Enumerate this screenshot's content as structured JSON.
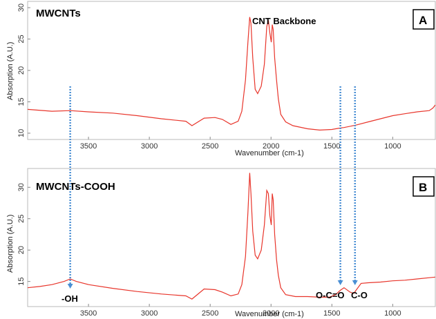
{
  "chart_data": [
    {
      "type": "line",
      "panel": "A",
      "title": "MWCNTs",
      "xlabel": "Wavenumber (cm-1)",
      "ylabel": "Absorption (A.U.)",
      "xlim": [
        4000,
        650
      ],
      "ylim": [
        9,
        31
      ],
      "x_reversed": true,
      "xticks": [
        3500,
        3000,
        2500,
        2000,
        1500,
        1000
      ],
      "yticks": [
        10,
        15,
        20,
        25,
        30
      ],
      "grid": false,
      "line_color": "#e8342a",
      "series": [
        {
          "x": [
            4000,
            3800,
            3650,
            3500,
            3300,
            3100,
            2900,
            2700,
            2650,
            2550,
            2460,
            2400,
            2330,
            2270,
            2240,
            2210,
            2190,
            2175,
            2165,
            2150,
            2130,
            2110,
            2080,
            2055,
            2035,
            2022,
            2010,
            1998,
            1990,
            1982,
            1970,
            1955,
            1940,
            1920,
            1880,
            1820,
            1700,
            1600,
            1500,
            1440,
            1400,
            1300,
            1200,
            1100,
            1000,
            900,
            800,
            700,
            670,
            650
          ],
          "y": [
            13.8,
            13.5,
            13.6,
            13.4,
            13.2,
            12.8,
            12.3,
            11.9,
            11.2,
            12.4,
            12.5,
            12.2,
            11.4,
            11.9,
            13.5,
            18.5,
            24.5,
            28.5,
            27.5,
            22.0,
            17.0,
            16.3,
            17.5,
            21.0,
            27.0,
            28.0,
            26.0,
            24.5,
            27.3,
            26.5,
            22.0,
            18.5,
            15.5,
            13.0,
            11.8,
            11.2,
            10.7,
            10.5,
            10.6,
            10.8,
            10.9,
            11.3,
            11.8,
            12.3,
            12.8,
            13.1,
            13.4,
            13.6,
            14.0,
            14.5
          ]
        }
      ]
    },
    {
      "type": "line",
      "panel": "B",
      "title": "MWCNTs-COOH",
      "xlabel": "Wavenumber (cm-1)",
      "ylabel": "Absorption (A.U.)",
      "xlim": [
        4000,
        650
      ],
      "ylim": [
        11,
        33
      ],
      "x_reversed": true,
      "xticks": [
        3500,
        3000,
        2500,
        2000,
        1500,
        1000
      ],
      "yticks": [
        15,
        20,
        25,
        30
      ],
      "grid": false,
      "line_color": "#e8342a",
      "series": [
        {
          "x": [
            4000,
            3900,
            3800,
            3700,
            3650,
            3600,
            3500,
            3300,
            3100,
            2900,
            2700,
            2650,
            2550,
            2460,
            2400,
            2330,
            2270,
            2240,
            2210,
            2190,
            2175,
            2165,
            2150,
            2130,
            2110,
            2080,
            2055,
            2035,
            2022,
            2010,
            1998,
            1990,
            1982,
            1970,
            1955,
            1940,
            1920,
            1880,
            1800,
            1700,
            1600,
            1520,
            1470,
            1430,
            1400,
            1350,
            1320,
            1290,
            1260,
            1200,
            1100,
            1000,
            900,
            800,
            700,
            650
          ],
          "y": [
            14.0,
            14.2,
            14.5,
            15.0,
            15.4,
            15.0,
            14.5,
            13.9,
            13.4,
            13.0,
            12.7,
            12.2,
            13.8,
            13.7,
            13.3,
            12.7,
            13.0,
            14.5,
            19.0,
            26.0,
            32.3,
            29.0,
            23.0,
            19.2,
            18.6,
            20.0,
            24.0,
            29.5,
            29.0,
            25.5,
            24.0,
            29.0,
            28.0,
            22.5,
            18.5,
            16.0,
            14.0,
            12.9,
            12.6,
            12.6,
            12.5,
            12.5,
            12.9,
            13.6,
            14.0,
            13.3,
            13.1,
            13.9,
            14.7,
            14.8,
            14.9,
            15.1,
            15.2,
            15.4,
            15.6,
            15.7
          ]
        }
      ]
    }
  ],
  "annotations": {
    "backbone_label": "CNT Backbone",
    "oh_label": "-OH",
    "oco_label": "O-C=O",
    "co_label": "C-O",
    "arrow_color": "#4a8fd4",
    "markers": [
      3650,
      1430,
      1310
    ]
  },
  "badges": {
    "a": "A",
    "b": "B"
  }
}
